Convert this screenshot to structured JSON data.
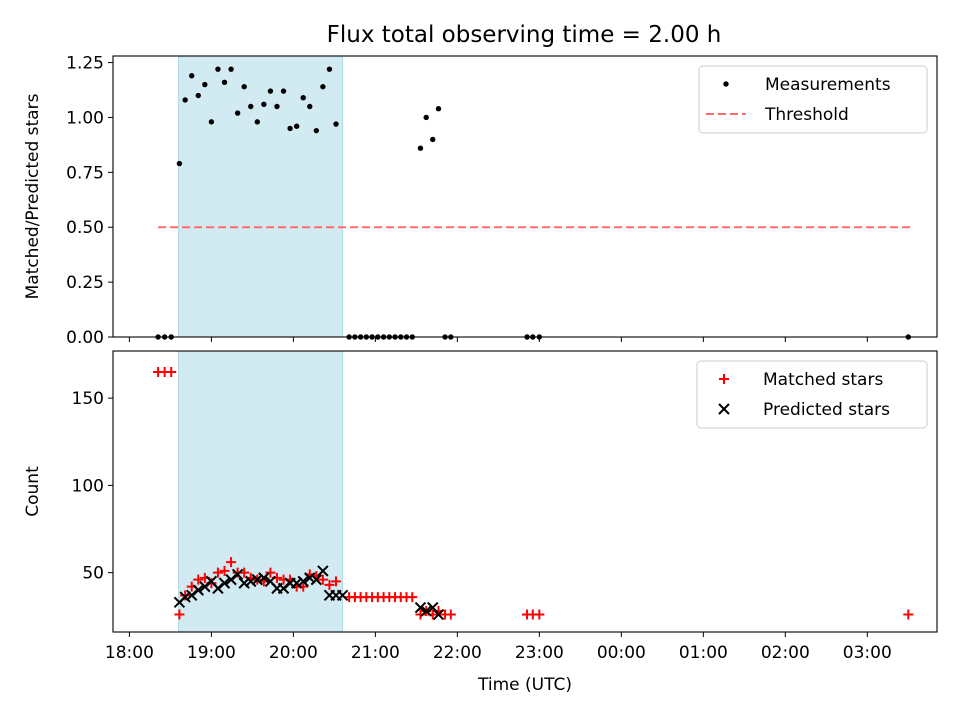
{
  "title": "Flux total observing time = 2.00 h",
  "colors": {
    "shade": "#add8e6",
    "matched": "#ff0000",
    "predicted": "#000000",
    "threshold": "#ff6b6b",
    "measurement": "#000000"
  },
  "chart_data": [
    {
      "type": "scatter",
      "ylabel": "Matched/Predicted stars",
      "xlim": [
        17.8,
        27.85
      ],
      "ylim": [
        0,
        1.28
      ],
      "yticks": [
        0,
        0.25,
        0.5,
        0.75,
        1.0,
        1.25
      ],
      "ytick_labels": [
        "0.00",
        "0.25",
        "0.50",
        "0.75",
        "1.00",
        "1.25"
      ],
      "legend_position": "top-right",
      "legend": [
        "Measurements",
        "Threshold"
      ],
      "shaded_span": [
        18.6,
        20.6
      ],
      "threshold": {
        "value": 0.5,
        "x_range": [
          18.35,
          27.55
        ]
      },
      "series": [
        {
          "name": "Measurements",
          "points": [
            [
              18.35,
              0
            ],
            [
              18.43,
              0
            ],
            [
              18.51,
              0
            ],
            [
              18.61,
              0.79
            ],
            [
              18.68,
              1.08
            ],
            [
              18.76,
              1.19
            ],
            [
              18.84,
              1.1
            ],
            [
              18.92,
              1.15
            ],
            [
              19.0,
              0.98
            ],
            [
              19.08,
              1.22
            ],
            [
              19.16,
              1.16
            ],
            [
              19.24,
              1.22
            ],
            [
              19.32,
              1.02
            ],
            [
              19.4,
              1.14
            ],
            [
              19.48,
              1.05
            ],
            [
              19.56,
              0.98
            ],
            [
              19.64,
              1.06
            ],
            [
              19.72,
              1.12
            ],
            [
              19.8,
              1.05
            ],
            [
              19.88,
              1.12
            ],
            [
              19.96,
              0.95
            ],
            [
              20.04,
              0.96
            ],
            [
              20.12,
              1.09
            ],
            [
              20.2,
              1.05
            ],
            [
              20.28,
              0.94
            ],
            [
              20.36,
              1.14
            ],
            [
              20.44,
              1.22
            ],
            [
              20.52,
              0.97
            ],
            [
              20.68,
              0
            ],
            [
              20.75,
              0
            ],
            [
              20.82,
              0
            ],
            [
              20.89,
              0
            ],
            [
              20.96,
              0
            ],
            [
              21.03,
              0
            ],
            [
              21.1,
              0
            ],
            [
              21.17,
              0
            ],
            [
              21.24,
              0
            ],
            [
              21.31,
              0
            ],
            [
              21.38,
              0
            ],
            [
              21.45,
              0
            ],
            [
              21.55,
              0.86
            ],
            [
              21.62,
              1.0
            ],
            [
              21.7,
              0.9
            ],
            [
              21.77,
              1.04
            ],
            [
              21.85,
              0
            ],
            [
              21.92,
              0
            ],
            [
              22.85,
              0
            ],
            [
              22.92,
              0
            ],
            [
              23.0,
              0
            ],
            [
              27.5,
              0
            ]
          ]
        }
      ]
    },
    {
      "type": "scatter",
      "ylabel": "Count",
      "xlabel": "Time (UTC)",
      "xlim": [
        17.8,
        27.85
      ],
      "ylim": [
        16,
        177
      ],
      "yticks": [
        50,
        100,
        150
      ],
      "ytick_labels": [
        "50",
        "100",
        "150"
      ],
      "xticks": [
        18,
        19,
        20,
        21,
        22,
        23,
        24,
        25,
        26,
        27
      ],
      "xtick_labels": [
        "18:00",
        "19:00",
        "20:00",
        "21:00",
        "22:00",
        "23:00",
        "00:00",
        "01:00",
        "02:00",
        "03:00"
      ],
      "legend_position": "top-right",
      "legend": [
        "Matched stars",
        "Predicted stars"
      ],
      "shaded_span": [
        18.6,
        20.6
      ],
      "series": [
        {
          "name": "Matched stars",
          "marker": "plus",
          "points": [
            [
              18.35,
              165
            ],
            [
              18.43,
              165
            ],
            [
              18.51,
              165
            ],
            [
              18.61,
              26
            ],
            [
              18.68,
              37
            ],
            [
              18.76,
              42
            ],
            [
              18.84,
              46
            ],
            [
              18.92,
              47
            ],
            [
              19.0,
              44
            ],
            [
              19.08,
              50
            ],
            [
              19.16,
              51
            ],
            [
              19.24,
              56
            ],
            [
              19.32,
              50
            ],
            [
              19.4,
              50
            ],
            [
              19.48,
              47
            ],
            [
              19.56,
              46
            ],
            [
              19.64,
              45
            ],
            [
              19.72,
              50
            ],
            [
              19.8,
              47
            ],
            [
              19.88,
              46
            ],
            [
              19.96,
              46
            ],
            [
              20.04,
              42
            ],
            [
              20.12,
              42
            ],
            [
              20.2,
              49
            ],
            [
              20.28,
              48
            ],
            [
              20.36,
              46
            ],
            [
              20.44,
              43
            ],
            [
              20.52,
              45
            ],
            [
              20.68,
              36
            ],
            [
              20.75,
              36
            ],
            [
              20.82,
              36
            ],
            [
              20.89,
              36
            ],
            [
              20.96,
              36
            ],
            [
              21.03,
              36
            ],
            [
              21.1,
              36
            ],
            [
              21.17,
              36
            ],
            [
              21.24,
              36
            ],
            [
              21.31,
              36
            ],
            [
              21.38,
              36
            ],
            [
              21.45,
              36
            ],
            [
              21.55,
              26
            ],
            [
              21.62,
              28
            ],
            [
              21.7,
              26
            ],
            [
              21.77,
              28
            ],
            [
              21.85,
              26
            ],
            [
              21.92,
              26
            ],
            [
              22.85,
              26
            ],
            [
              22.92,
              26
            ],
            [
              23.0,
              26
            ],
            [
              27.5,
              26
            ]
          ]
        },
        {
          "name": "Predicted stars",
          "marker": "x",
          "points": [
            [
              18.61,
              33
            ],
            [
              18.68,
              36
            ],
            [
              18.76,
              37
            ],
            [
              18.84,
              40
            ],
            [
              18.92,
              42
            ],
            [
              19.0,
              45
            ],
            [
              19.08,
              41
            ],
            [
              19.16,
              44
            ],
            [
              19.24,
              46
            ],
            [
              19.32,
              49
            ],
            [
              19.4,
              44
            ],
            [
              19.48,
              45
            ],
            [
              19.56,
              46
            ],
            [
              19.64,
              47
            ],
            [
              19.72,
              45
            ],
            [
              19.8,
              41
            ],
            [
              19.88,
              41
            ],
            [
              19.96,
              44
            ],
            [
              20.04,
              44
            ],
            [
              20.12,
              45
            ],
            [
              20.2,
              47
            ],
            [
              20.28,
              46
            ],
            [
              20.36,
              51
            ],
            [
              20.44,
              37
            ],
            [
              20.52,
              37
            ],
            [
              20.6,
              37
            ],
            [
              21.55,
              30
            ],
            [
              21.62,
              28
            ],
            [
              21.7,
              30
            ],
            [
              21.77,
              26
            ]
          ]
        }
      ]
    }
  ]
}
